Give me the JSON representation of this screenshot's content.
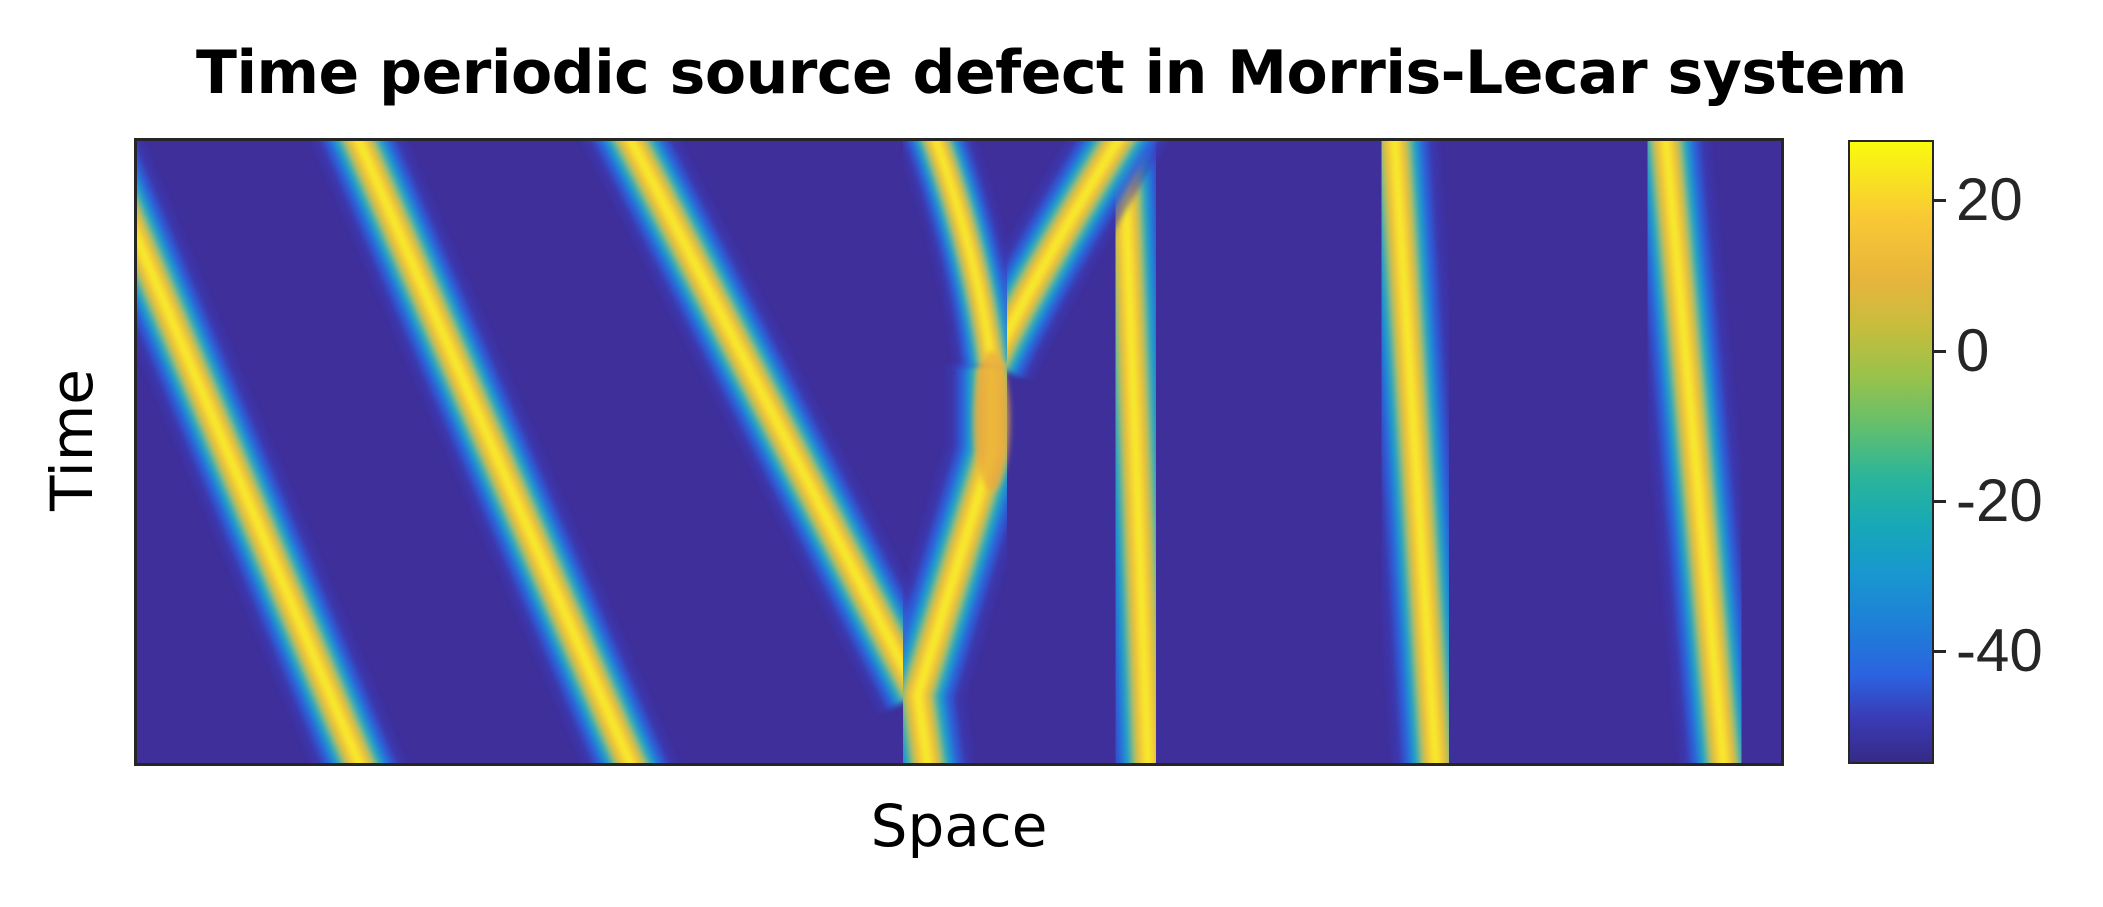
{
  "chart_data": {
    "type": "heatmap",
    "title": "Time periodic source defect in Morris-Lecar system",
    "xlabel": "Space",
    "ylabel": "Time",
    "colorbar": {
      "colormap": "parula",
      "range": [
        -55,
        28
      ],
      "ticks": [
        20,
        0,
        -20,
        -40
      ],
      "tick_labels": [
        "20",
        "0",
        "-20",
        "-40"
      ]
    },
    "axis_ticks_visible": false,
    "background_value": -52,
    "peak_value": 28,
    "wave_fronts": [
      {
        "name": "",
        "direction": "left",
        "x_bottom": 0.135,
        "x_top": -0.025
      },
      {
        "name": "",
        "direction": "left",
        "x_bottom": 0.3,
        "x_top": 0.135
      },
      {
        "name": "",
        "direction": "left",
        "x_top": 0.305,
        "x_at_merge": 0.475,
        "merge_time": 0.11
      },
      {
        "name": "",
        "direction": "right",
        "x_bottom": 0.615,
        "x_top": 0.6
      },
      {
        "name": "",
        "direction": "right",
        "x_bottom": 0.79,
        "x_top": 0.765
      },
      {
        "name": "",
        "direction": "right",
        "x_bottom": 0.965,
        "x_top": 0.93
      },
      {
        "name": "",
        "direction": "right",
        "x_bottom": 1.14,
        "x_top": 1.105
      }
    ],
    "defect": {
      "x": 0.485,
      "stem": [
        {
          "t": 0.0,
          "x": 0.485
        },
        {
          "t": 0.11,
          "x": 0.475
        },
        {
          "t": 0.5,
          "x": 0.52
        },
        {
          "t": 0.64,
          "x": 0.52
        }
      ],
      "right_branch": [
        {
          "t": 0.64,
          "x": 0.52
        },
        {
          "t": 1.0,
          "x": 0.605
        }
      ],
      "left_branch": [
        {
          "t": 0.64,
          "x": 0.52
        },
        {
          "t": 1.0,
          "x": 0.475
        }
      ]
    }
  }
}
